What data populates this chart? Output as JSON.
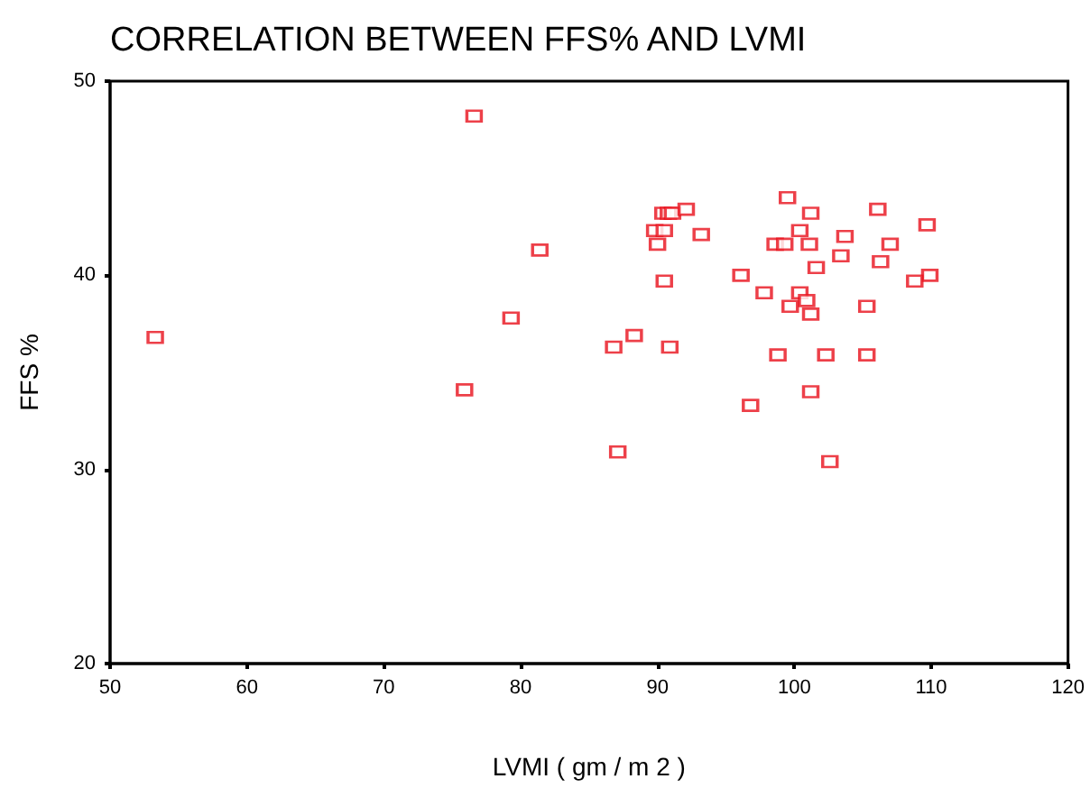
{
  "chart_data": {
    "type": "scatter",
    "title": "CORRELATION BETWEEN FFS% AND LVMI",
    "xlabel": "LVMI ( gm / m 2 )",
    "ylabel": "FFS %",
    "x": [
      53.3,
      76.6,
      81.4,
      79.3,
      75.9,
      99.5,
      101.2,
      106.1,
      109.7,
      90.4,
      90.8,
      91.1,
      92.1,
      89.8,
      90.5,
      93.2,
      100.4,
      103.7,
      90.0,
      98.6,
      99.3,
      101.1,
      107.0,
      103.4,
      106.3,
      101.6,
      109.9,
      108.8,
      90.5,
      96.1,
      97.8,
      100.4,
      100.9,
      99.7,
      101.2,
      105.3,
      88.3,
      86.8,
      90.9,
      98.8,
      102.3,
      105.3,
      101.2,
      96.8,
      87.1,
      102.6
    ],
    "series": [
      {
        "color": "#e8101c",
        "values": [
          36.8,
          48.2,
          41.3,
          37.8,
          34.1,
          44.0,
          43.2,
          43.4,
          42.6,
          43.2,
          43.2,
          43.2,
          43.4,
          42.3,
          42.3,
          42.1,
          42.3,
          42.0,
          41.6,
          41.6,
          41.6,
          41.6,
          41.6,
          41.0,
          40.7,
          40.4,
          40.0,
          39.7,
          39.7,
          40.0,
          39.1,
          39.1,
          38.7,
          38.4,
          38.0,
          38.4,
          36.9,
          36.3,
          36.3,
          35.9,
          35.9,
          35.9,
          34.0,
          33.3,
          30.9,
          30.4
        ]
      }
    ],
    "xlim": [
      50,
      120
    ],
    "xticks": [
      50,
      60,
      70,
      80,
      90,
      100,
      110,
      120
    ],
    "ylim": [
      20,
      50
    ],
    "yticks": [
      20,
      30,
      40,
      50
    ],
    "marker": "square",
    "grid": false
  }
}
